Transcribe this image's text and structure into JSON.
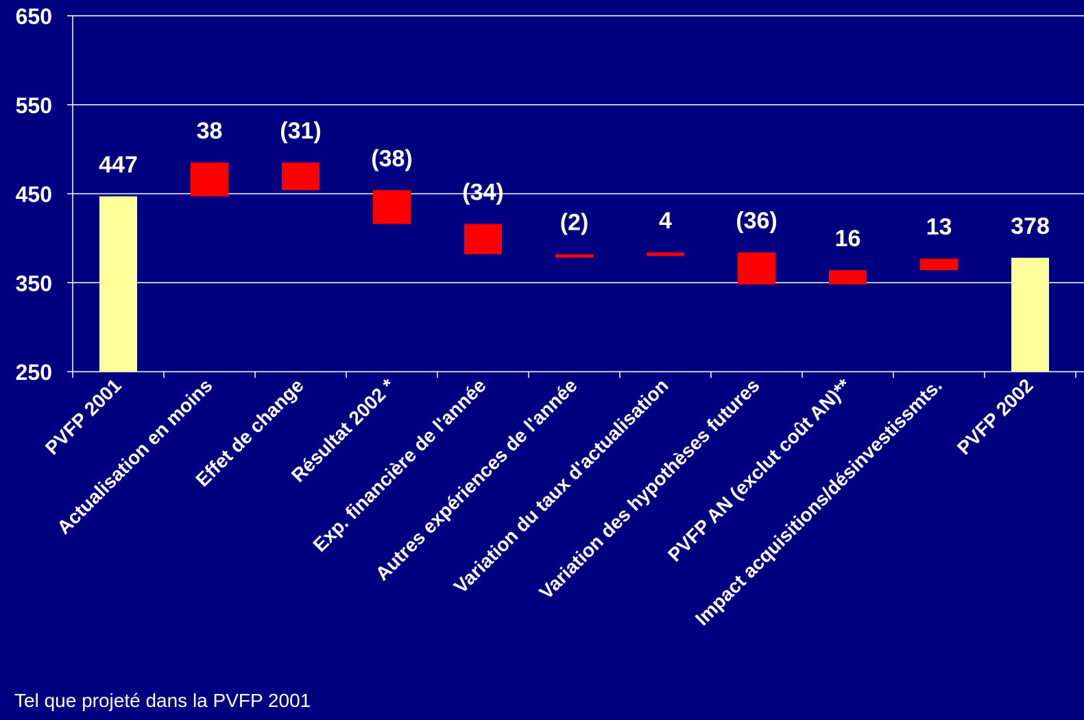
{
  "chart_data": {
    "type": "bar",
    "subtype": "waterfall",
    "ylim": [
      250,
      650
    ],
    "yticks": [
      "250",
      "350",
      "450",
      "550",
      "650"
    ],
    "grid": true,
    "categories": [
      "PVFP 2001",
      "Actualisation en moins",
      "Effet de change",
      "Résultat 2002 *",
      "Exp. financière de l'année",
      "Autres expériences de l'année",
      "Variation du taux d'actualisation",
      "Variation des hypothèses futures",
      "PVFP AN (exclut coût AN)**",
      "Impact acquisitions/désinvestissmts.",
      "PVFP 2002"
    ],
    "bars": [
      {
        "kind": "total",
        "low": 250,
        "high": 447,
        "label": "447"
      },
      {
        "kind": "change",
        "low": 447,
        "high": 485,
        "label": "38"
      },
      {
        "kind": "change",
        "low": 454,
        "high": 485,
        "label": "(31)"
      },
      {
        "kind": "change",
        "low": 416,
        "high": 454,
        "label": "(38)"
      },
      {
        "kind": "change",
        "low": 382,
        "high": 416,
        "label": "(34)"
      },
      {
        "kind": "change",
        "low": 380,
        "high": 382,
        "label": "(2)"
      },
      {
        "kind": "change",
        "low": 380,
        "high": 384,
        "label": "4"
      },
      {
        "kind": "change",
        "low": 348,
        "high": 384,
        "label": "(36)"
      },
      {
        "kind": "change",
        "low": 348,
        "high": 364,
        "label": "16"
      },
      {
        "kind": "change",
        "low": 364,
        "high": 377,
        "label": "13"
      },
      {
        "kind": "total",
        "low": 250,
        "high": 378,
        "label": "378"
      }
    ],
    "colors": {
      "background": "#000080",
      "total": "#FFFF99",
      "change": "#FF0000",
      "grid": "#FFFFFF",
      "text": "#FFFFFF"
    }
  },
  "footnote": "Tel que projeté dans la PVFP 2001"
}
